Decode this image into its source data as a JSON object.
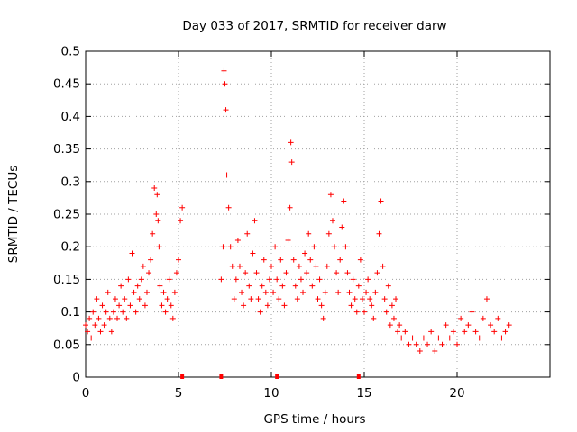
{
  "chart_data": {
    "type": "scatter",
    "title": "Day 033 of 2017, SRMTID for receiver darw",
    "xlabel": "GPS time / hours",
    "ylabel": "SRMTID / TECUs",
    "xlim": [
      0,
      25
    ],
    "ylim": [
      0,
      0.5
    ],
    "x_ticks": [
      0,
      5,
      10,
      15,
      20
    ],
    "x_tick_labels": [
      "0",
      "5",
      "10",
      "15",
      "20"
    ],
    "y_ticks": [
      0,
      0.05,
      0.1,
      0.15,
      0.2,
      0.25,
      0.3,
      0.35,
      0.4,
      0.45,
      0.5
    ],
    "y_tick_labels": [
      "0",
      "0.05",
      "0.1",
      "0.15",
      "0.2",
      "0.25",
      "0.3",
      "0.35",
      "0.4",
      "0.45",
      "0.5"
    ],
    "grid": true,
    "marker": "plus",
    "color": "#ff0000",
    "series": [
      {
        "name": "SRMTID",
        "x": [
          0.0,
          0.1,
          0.2,
          0.3,
          0.4,
          0.5,
          0.6,
          0.7,
          0.8,
          0.9,
          1.0,
          1.1,
          1.2,
          1.3,
          1.4,
          1.5,
          1.6,
          1.7,
          1.8,
          1.9,
          2.0,
          2.1,
          2.2,
          2.3,
          2.4,
          2.5,
          2.6,
          2.7,
          2.8,
          2.9,
          3.0,
          3.1,
          3.2,
          3.3,
          3.4,
          3.5,
          3.6,
          3.7,
          3.8,
          3.85,
          3.9,
          3.95,
          4.0,
          4.1,
          4.2,
          4.3,
          4.4,
          4.5,
          4.6,
          4.7,
          4.8,
          4.9,
          5.0,
          5.1,
          5.2,
          7.3,
          7.4,
          7.45,
          7.5,
          7.55,
          7.6,
          7.7,
          7.8,
          7.9,
          8.0,
          8.1,
          8.2,
          8.3,
          8.4,
          8.5,
          8.6,
          8.7,
          8.8,
          8.9,
          9.0,
          9.1,
          9.2,
          9.3,
          9.4,
          9.5,
          9.6,
          9.7,
          9.8,
          9.9,
          10.0,
          10.1,
          10.2,
          10.3,
          10.4,
          10.5,
          10.6,
          10.7,
          10.8,
          10.9,
          11.0,
          11.05,
          11.1,
          11.2,
          11.3,
          11.4,
          11.5,
          11.6,
          11.7,
          11.8,
          11.9,
          12.0,
          12.1,
          12.2,
          12.3,
          12.4,
          12.5,
          12.6,
          12.7,
          12.8,
          12.9,
          13.0,
          13.1,
          13.2,
          13.3,
          13.4,
          13.5,
          13.6,
          13.7,
          13.8,
          13.9,
          14.0,
          14.1,
          14.2,
          14.3,
          14.4,
          14.5,
          14.6,
          14.7,
          14.8,
          14.9,
          15.0,
          15.1,
          15.2,
          15.3,
          15.4,
          15.5,
          15.6,
          15.7,
          15.8,
          15.9,
          16.0,
          16.1,
          16.2,
          16.3,
          16.4,
          16.5,
          16.6,
          16.7,
          16.8,
          16.9,
          17.0,
          17.2,
          17.4,
          17.6,
          17.8,
          18.0,
          18.2,
          18.4,
          18.6,
          18.8,
          19.0,
          19.2,
          19.4,
          19.6,
          19.8,
          20.0,
          20.2,
          20.4,
          20.6,
          20.8,
          21.0,
          21.2,
          21.4,
          21.6,
          21.8,
          22.0,
          22.2,
          22.4,
          22.6,
          22.8
        ],
        "y": [
          0.08,
          0.07,
          0.09,
          0.06,
          0.1,
          0.08,
          0.12,
          0.09,
          0.07,
          0.11,
          0.08,
          0.1,
          0.13,
          0.09,
          0.07,
          0.1,
          0.12,
          0.09,
          0.11,
          0.14,
          0.1,
          0.12,
          0.09,
          0.15,
          0.11,
          0.19,
          0.13,
          0.1,
          0.14,
          0.12,
          0.15,
          0.17,
          0.11,
          0.13,
          0.16,
          0.18,
          0.22,
          0.29,
          0.25,
          0.28,
          0.24,
          0.2,
          0.14,
          0.11,
          0.13,
          0.1,
          0.12,
          0.15,
          0.11,
          0.09,
          0.13,
          0.16,
          0.18,
          0.24,
          0.26,
          0.15,
          0.2,
          0.47,
          0.45,
          0.41,
          0.31,
          0.26,
          0.2,
          0.17,
          0.12,
          0.15,
          0.21,
          0.17,
          0.13,
          0.11,
          0.16,
          0.22,
          0.14,
          0.12,
          0.19,
          0.24,
          0.16,
          0.12,
          0.1,
          0.14,
          0.18,
          0.13,
          0.11,
          0.15,
          0.17,
          0.13,
          0.2,
          0.15,
          0.12,
          0.18,
          0.14,
          0.11,
          0.16,
          0.21,
          0.26,
          0.36,
          0.33,
          0.18,
          0.14,
          0.12,
          0.17,
          0.15,
          0.13,
          0.19,
          0.16,
          0.22,
          0.18,
          0.14,
          0.2,
          0.17,
          0.12,
          0.15,
          0.11,
          0.09,
          0.13,
          0.17,
          0.22,
          0.28,
          0.24,
          0.2,
          0.16,
          0.13,
          0.18,
          0.23,
          0.27,
          0.2,
          0.16,
          0.13,
          0.11,
          0.15,
          0.12,
          0.1,
          0.14,
          0.18,
          0.12,
          0.1,
          0.13,
          0.15,
          0.12,
          0.11,
          0.09,
          0.13,
          0.16,
          0.22,
          0.27,
          0.17,
          0.12,
          0.1,
          0.14,
          0.08,
          0.11,
          0.09,
          0.12,
          0.07,
          0.08,
          0.06,
          0.07,
          0.05,
          0.06,
          0.05,
          0.04,
          0.06,
          0.05,
          0.07,
          0.04,
          0.06,
          0.05,
          0.08,
          0.06,
          0.07,
          0.05,
          0.09,
          0.07,
          0.08,
          0.1,
          0.07,
          0.06,
          0.09,
          0.12,
          0.08,
          0.07,
          0.09,
          0.06,
          0.07,
          0.08
        ]
      }
    ],
    "bottom_markers": [
      5.2,
      7.3,
      10.3,
      14.7
    ]
  }
}
